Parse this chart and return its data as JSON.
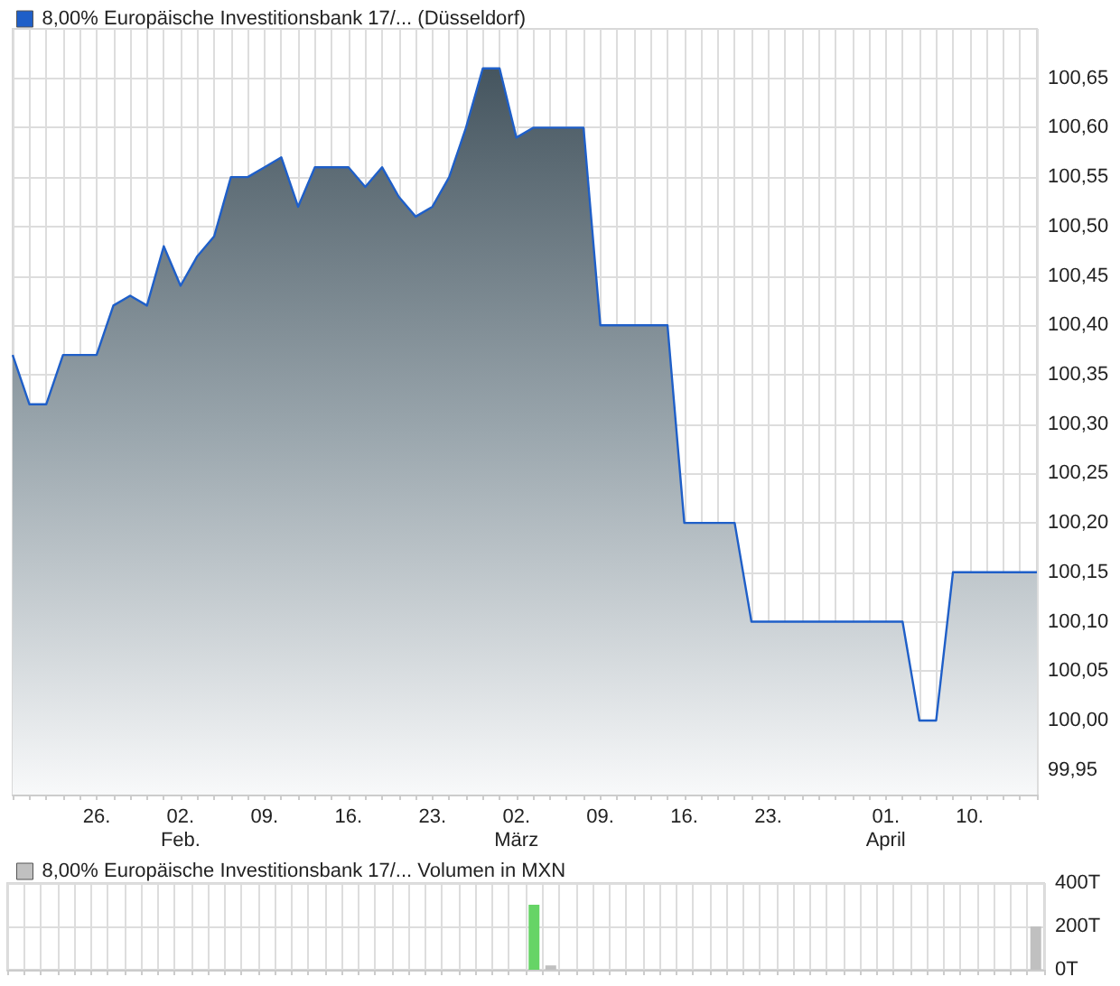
{
  "chart_data": [
    {
      "type": "area",
      "legend": "top left",
      "grid": true,
      "marker": "none",
      "line_style": "solid",
      "categories": [
        null,
        null,
        null,
        null,
        null,
        "26.",
        null,
        null,
        null,
        null,
        "02.\nFeb.",
        null,
        null,
        null,
        null,
        "09.",
        null,
        null,
        null,
        null,
        "16.",
        null,
        null,
        null,
        null,
        "23.",
        null,
        null,
        null,
        null,
        "02.\nMärz",
        null,
        null,
        null,
        null,
        "09.",
        null,
        null,
        null,
        null,
        "16.",
        null,
        null,
        null,
        null,
        "23.",
        null,
        null,
        null,
        null,
        null,
        null,
        "01.\nApril",
        null,
        null,
        null,
        null,
        "10.",
        null,
        null,
        null,
        null
      ],
      "series": [
        {
          "name": "8,00% Europäische Investitionsbank 17/... (Düsseldorf)",
          "color": "#1f5fc8",
          "values": [
            100.37,
            100.32,
            100.32,
            100.37,
            100.37,
            100.37,
            100.42,
            100.43,
            100.42,
            100.48,
            100.44,
            100.47,
            100.49,
            100.55,
            100.55,
            100.56,
            100.57,
            100.52,
            100.56,
            100.56,
            100.56,
            100.54,
            100.56,
            100.53,
            100.51,
            100.52,
            100.55,
            100.6,
            100.66,
            100.66,
            100.59,
            100.6,
            100.6,
            100.6,
            100.6,
            100.4,
            100.4,
            100.4,
            100.4,
            100.4,
            100.2,
            100.2,
            100.2,
            100.2,
            100.1,
            100.1,
            100.1,
            100.1,
            100.1,
            100.1,
            100.1,
            100.1,
            100.1,
            100.1,
            100.0,
            100.0,
            100.15,
            100.15,
            100.15,
            100.15,
            100.15,
            100.15
          ]
        }
      ],
      "ylim": [
        99.925,
        100.7
      ],
      "yticks": [
        {
          "value": 99.95,
          "label": "99,95"
        },
        {
          "value": 100.0,
          "label": "100,00"
        },
        {
          "value": 100.05,
          "label": "100,05"
        },
        {
          "value": 100.1,
          "label": "100,10"
        },
        {
          "value": 100.15,
          "label": "100,15"
        },
        {
          "value": 100.2,
          "label": "100,20"
        },
        {
          "value": 100.25,
          "label": "100,25"
        },
        {
          "value": 100.3,
          "label": "100,30"
        },
        {
          "value": 100.35,
          "label": "100,35"
        },
        {
          "value": 100.4,
          "label": "100,40"
        },
        {
          "value": 100.45,
          "label": "100,45"
        },
        {
          "value": 100.5,
          "label": "100,50"
        },
        {
          "value": 100.55,
          "label": "100,55"
        },
        {
          "value": 100.6,
          "label": "100,60"
        },
        {
          "value": 100.65,
          "label": "100,65"
        }
      ]
    },
    {
      "type": "bar",
      "legend": "top left",
      "grid": true,
      "tick_labels": "y",
      "categories": [
        null,
        null,
        null,
        null,
        null,
        null,
        null,
        null,
        null,
        null,
        null,
        null,
        null,
        null,
        null,
        null,
        null,
        null,
        null,
        null,
        null,
        null,
        null,
        null,
        null,
        null,
        null,
        null,
        null,
        null,
        null,
        null,
        null,
        null,
        null,
        null,
        null,
        null,
        null,
        null,
        null,
        null,
        null,
        null,
        null,
        null,
        null,
        null,
        null,
        null,
        null,
        null,
        null,
        null,
        null,
        null,
        null,
        null,
        null,
        null,
        null,
        null
      ],
      "series": [
        {
          "name": "8,00% Europäische Investitionsbank 17/... Volumen in MXN",
          "color": "#c0c0c0",
          "colors": [
            null,
            null,
            null,
            null,
            null,
            null,
            null,
            null,
            null,
            null,
            null,
            null,
            null,
            null,
            null,
            null,
            null,
            null,
            null,
            null,
            null,
            null,
            null,
            null,
            null,
            null,
            null,
            null,
            null,
            null,
            null,
            "#66d466",
            "#c0c0c0",
            null,
            null,
            null,
            null,
            null,
            null,
            null,
            null,
            null,
            null,
            null,
            null,
            null,
            null,
            null,
            null,
            null,
            null,
            null,
            null,
            null,
            null,
            null,
            null,
            null,
            null,
            null,
            null,
            "#c0c0c0"
          ],
          "values": [
            null,
            null,
            null,
            null,
            null,
            null,
            null,
            null,
            null,
            null,
            null,
            null,
            null,
            null,
            null,
            null,
            null,
            null,
            null,
            null,
            null,
            null,
            null,
            null,
            null,
            null,
            null,
            null,
            null,
            null,
            null,
            300,
            20,
            null,
            null,
            null,
            null,
            null,
            null,
            null,
            null,
            null,
            null,
            null,
            null,
            null,
            null,
            null,
            null,
            null,
            null,
            null,
            null,
            null,
            null,
            null,
            null,
            null,
            null,
            null,
            null,
            200
          ]
        }
      ],
      "ylim": [
        0,
        400
      ],
      "yticks": [
        {
          "value": 0,
          "label": "0T"
        },
        {
          "value": 200,
          "label": "200T"
        },
        {
          "value": 400,
          "label": "400T"
        }
      ]
    }
  ]
}
